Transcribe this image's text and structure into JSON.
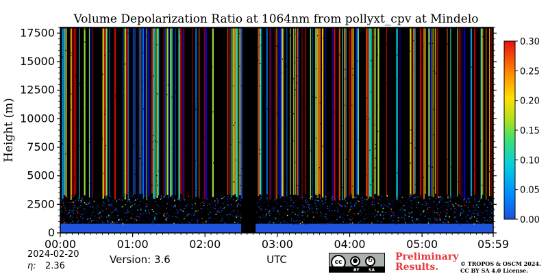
{
  "chart_data": {
    "type": "heatmap",
    "title": "Volume Depolarization Ratio at 1064nm from pollyxt_cpv at Mindelo",
    "xlabel": "UTC",
    "ylabel": "Height (m)",
    "x_ticks": [
      "00:00",
      "01:00",
      "02:00",
      "03:00",
      "04:00",
      "05:00",
      "05:59"
    ],
    "y_ticks": [
      "0",
      "2500",
      "5000",
      "7500",
      "10000",
      "12500",
      "15000",
      "17500"
    ],
    "xlim": [
      "00:00",
      "05:59"
    ],
    "ylim": [
      0,
      18000
    ],
    "colorbar": {
      "ticks": [
        "0.00",
        "0.05",
        "0.10",
        "0.15",
        "0.20",
        "0.25",
        "0.30"
      ],
      "range": [
        0,
        0.3
      ],
      "colormap": "jet"
    },
    "features": {
      "dust_layer_top_m": 3000,
      "dust_layer_depol": 0.01,
      "surface_layer_top_m": 800,
      "gap_start": "02:30",
      "gap_end": "02:42"
    }
  },
  "footer": {
    "date": "2024-02-20",
    "eta_label": "η:",
    "eta_value": "2.36",
    "version": "Version: 3.6",
    "utc_label": "UTC",
    "preliminary_line1": "Preliminary",
    "preliminary_line2": "Results.",
    "copyright_line1": "© TROPOS & OSCM 2024.",
    "copyright_line2": "CC BY SA 4.0 License.",
    "license_badge": {
      "cc": "cc",
      "by": "BY",
      "sa": "SA"
    }
  },
  "colors": {
    "nodata": "#000000",
    "low": "#0000ff",
    "high": "#ff0000",
    "preliminary": "#e8373a"
  }
}
